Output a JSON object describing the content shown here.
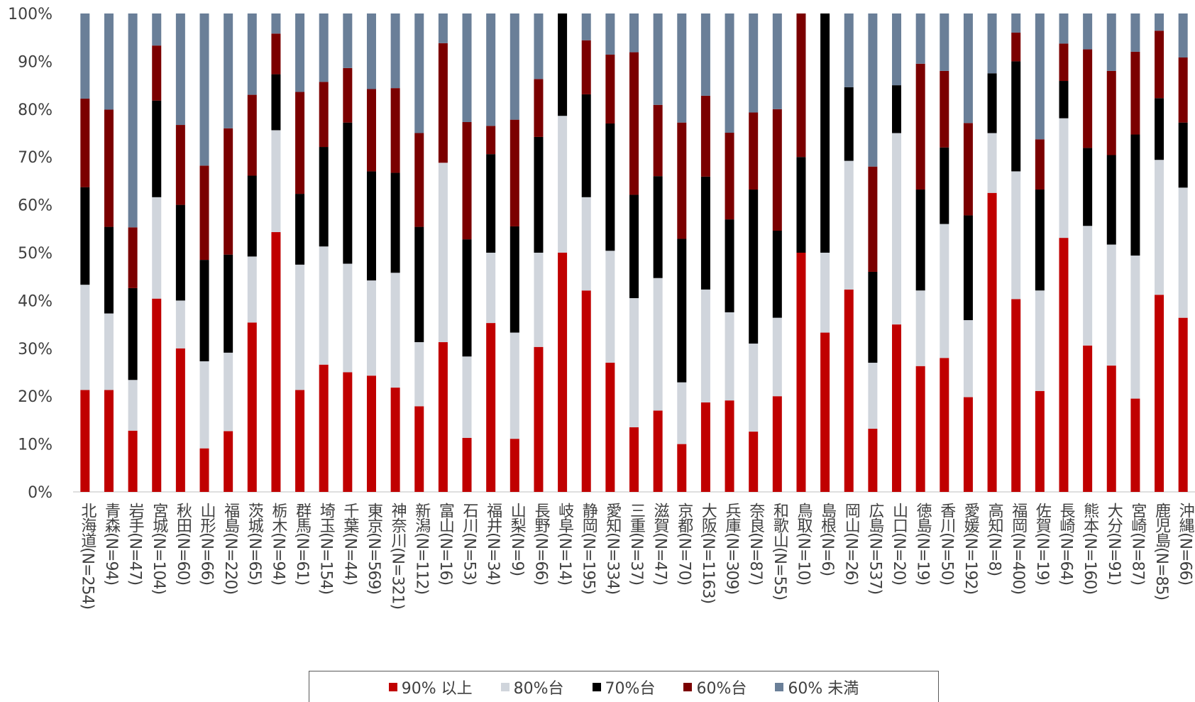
{
  "chart_data": {
    "type": "bar",
    "stacked": true,
    "percent": true,
    "ylim": [
      0,
      100
    ],
    "yticks": [
      "0%",
      "10%",
      "20%",
      "30%",
      "40%",
      "50%",
      "60%",
      "70%",
      "80%",
      "90%",
      "100%"
    ],
    "categories": [
      "北海道(N=254)",
      "青森(N=94)",
      "岩手(N=47)",
      "宮城(N=104)",
      "秋田(N=60)",
      "山形(N=66)",
      "福島(N=220)",
      "茨城(N=65)",
      "栃木(N=94)",
      "群馬(N=61)",
      "埼玉(N=154)",
      "千葉(N=44)",
      "東京(N=569)",
      "神奈川(N=321)",
      "新潟(N=112)",
      "富山(N=16)",
      "石川(N=53)",
      "福井(N=34)",
      "山梨(N=9)",
      "長野(N=66)",
      "岐阜(N=14)",
      "静岡(N=195)",
      "愛知(N=334)",
      "三重(N=37)",
      "滋賀(N=47)",
      "京都(N=70)",
      "大阪(N=1163)",
      "兵庫(N=309)",
      "奈良(N=87)",
      "和歌山(N=55)",
      "鳥取(N=10)",
      "島根(N=6)",
      "岡山(N=26)",
      "広島(N=537)",
      "山口(N=20)",
      "徳島(N=19)",
      "香川(N=50)",
      "愛媛(N=192)",
      "高知(N=8)",
      "福岡(N=400)",
      "佐賀(N=19)",
      "長崎(N=64)",
      "熊本(N=160)",
      "大分(N=91)",
      "宮崎(N=87)",
      "鹿児島(N=85)",
      "沖縄(N=66)"
    ],
    "series": [
      {
        "name": "90% 以上",
        "color": "#c00000",
        "values": [
          21.3,
          21.3,
          12.8,
          40.4,
          30.0,
          9.1,
          12.7,
          35.4,
          54.3,
          21.3,
          26.6,
          25.0,
          24.3,
          21.8,
          17.9,
          31.3,
          11.3,
          35.3,
          11.1,
          30.3,
          50.0,
          42.1,
          27.0,
          13.5,
          17.0,
          10.0,
          18.7,
          19.1,
          12.6,
          20.0,
          50.0,
          33.3,
          42.3,
          13.2,
          35.0,
          26.3,
          28.0,
          19.8,
          62.5,
          40.3,
          21.1,
          53.1,
          30.6,
          26.4,
          19.5,
          41.2,
          36.4
        ]
      },
      {
        "name": "80%台",
        "color": "#d0d5dc",
        "values": [
          22.0,
          16.0,
          10.6,
          21.2,
          10.0,
          18.2,
          16.4,
          13.8,
          21.3,
          26.2,
          24.7,
          22.7,
          19.9,
          24.0,
          13.4,
          37.5,
          17.0,
          14.7,
          22.2,
          19.7,
          28.6,
          19.5,
          23.4,
          27.0,
          27.7,
          12.9,
          23.6,
          18.4,
          18.4,
          16.4,
          0.0,
          16.7,
          26.9,
          13.8,
          40.0,
          15.8,
          28.0,
          16.1,
          12.5,
          26.7,
          21.0,
          25.0,
          25.0,
          25.3,
          29.9,
          28.2,
          27.2
        ]
      },
      {
        "name": "70%台",
        "color": "#000000",
        "values": [
          20.4,
          18.1,
          19.2,
          20.2,
          20.0,
          21.2,
          20.5,
          16.9,
          11.7,
          14.8,
          20.8,
          29.5,
          22.8,
          20.9,
          24.1,
          0.0,
          24.5,
          20.6,
          22.2,
          24.2,
          21.4,
          21.5,
          26.6,
          21.6,
          21.3,
          30.0,
          23.6,
          19.4,
          32.2,
          18.2,
          20.0,
          50.0,
          15.4,
          19.0,
          10.0,
          21.1,
          16.0,
          21.9,
          12.5,
          23.0,
          21.1,
          7.8,
          16.3,
          18.7,
          25.3,
          12.9,
          13.6
        ]
      },
      {
        "name": "60%台",
        "color": "#7b0000",
        "values": [
          18.5,
          24.5,
          12.7,
          11.5,
          16.7,
          19.7,
          26.4,
          16.9,
          8.5,
          21.3,
          13.6,
          11.4,
          17.2,
          17.7,
          19.6,
          25.0,
          24.5,
          5.9,
          22.3,
          12.1,
          0.0,
          11.3,
          14.4,
          29.8,
          14.9,
          24.3,
          16.9,
          18.1,
          16.1,
          25.4,
          30.0,
          0.0,
          0.0,
          22.0,
          0.0,
          26.3,
          16.0,
          19.3,
          0.0,
          6.0,
          10.5,
          7.8,
          20.6,
          17.6,
          17.3,
          14.1,
          13.6
        ]
      },
      {
        "name": "60% 未満",
        "color": "#6a7f98",
        "values": [
          17.8,
          20.1,
          44.7,
          6.7,
          23.3,
          31.8,
          24.0,
          17.0,
          4.2,
          16.4,
          14.3,
          11.4,
          15.8,
          15.6,
          25.0,
          6.2,
          22.7,
          23.5,
          22.2,
          13.7,
          0.0,
          5.6,
          8.6,
          8.1,
          19.1,
          22.8,
          17.2,
          24.9,
          20.7,
          20.0,
          0.0,
          0.0,
          15.4,
          32.0,
          15.0,
          10.5,
          12.0,
          22.9,
          12.5,
          4.0,
          26.3,
          6.3,
          7.5,
          12.0,
          8.0,
          3.6,
          9.2
        ]
      }
    ],
    "legend_position": "bottom"
  }
}
